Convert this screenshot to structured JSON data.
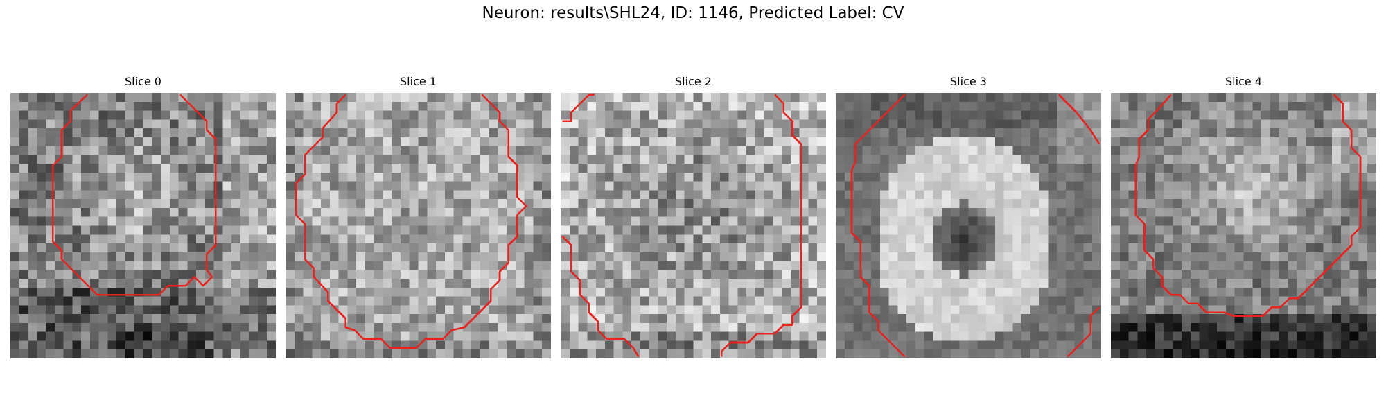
{
  "figure": {
    "title": "Neuron: results\\SHL24, ID: 1146, Predicted Label: CV"
  },
  "colors": {
    "contour": "#e8231f",
    "background": "#ffffff"
  },
  "panels": [
    {
      "title": "Slice 0",
      "pattern": "bright-center-dark-lower-band"
    },
    {
      "title": "Slice 1",
      "pattern": "uniform-bright-speckle"
    },
    {
      "title": "Slice 2",
      "pattern": "mid-gray-speckle-darker-center"
    },
    {
      "title": "Slice 3",
      "pattern": "bright-ring-dark-nucleus"
    },
    {
      "title": "Slice 4",
      "pattern": "bright-center-dark-bottom"
    }
  ]
}
